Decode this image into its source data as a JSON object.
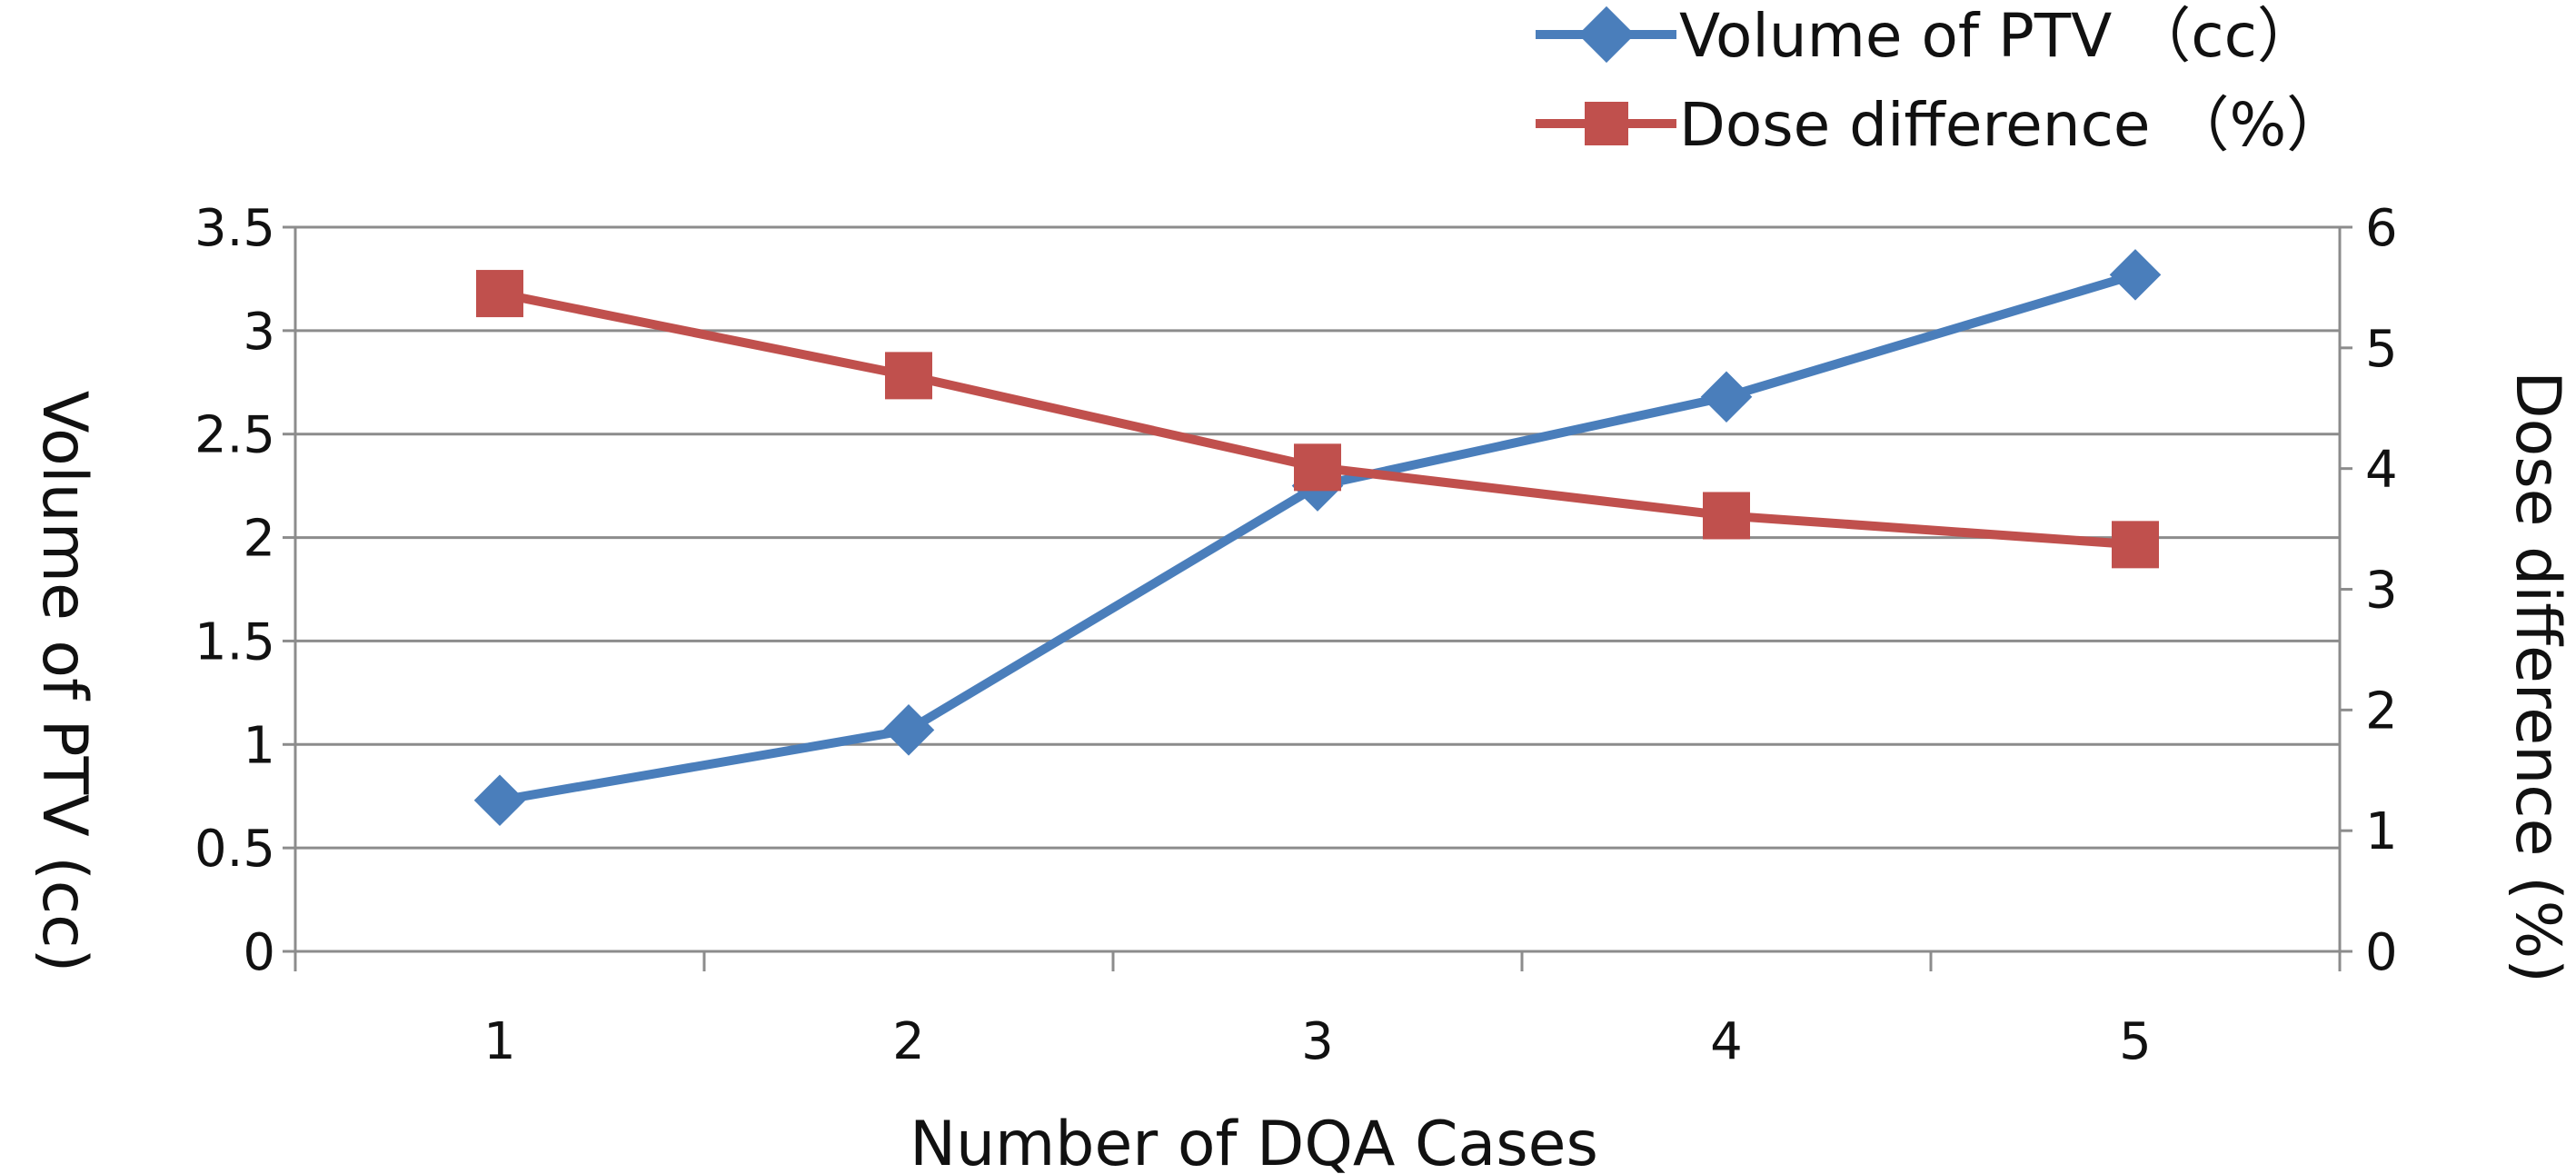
{
  "chart_data": {
    "type": "line",
    "title": "",
    "xlabel": "Number of DQA Cases",
    "ylabel": "Volume of PTV (cc)",
    "y2label": "Dose difference (%)",
    "categories": [
      "1",
      "2",
      "3",
      "4",
      "5"
    ],
    "ylim": [
      0,
      3.5
    ],
    "y2lim": [
      0,
      6
    ],
    "yticks": [
      "0",
      "0.5",
      "1",
      "1.5",
      "2",
      "2.5",
      "3",
      "3.5"
    ],
    "y2ticks": [
      "0",
      "1",
      "2",
      "3",
      "4",
      "5",
      "6"
    ],
    "grid": true,
    "legend_position": "top-right",
    "series": [
      {
        "name": "Volume of PTV （cc）",
        "axis": "left",
        "marker": "diamond",
        "color": "#4a7ebb",
        "values": [
          0.73,
          1.07,
          2.25,
          2.68,
          3.27
        ]
      },
      {
        "name": "Dose difference （%）",
        "axis": "right",
        "marker": "square",
        "color": "#c0504d",
        "values": [
          5.45,
          4.77,
          4.01,
          3.61,
          3.37
        ]
      }
    ]
  }
}
